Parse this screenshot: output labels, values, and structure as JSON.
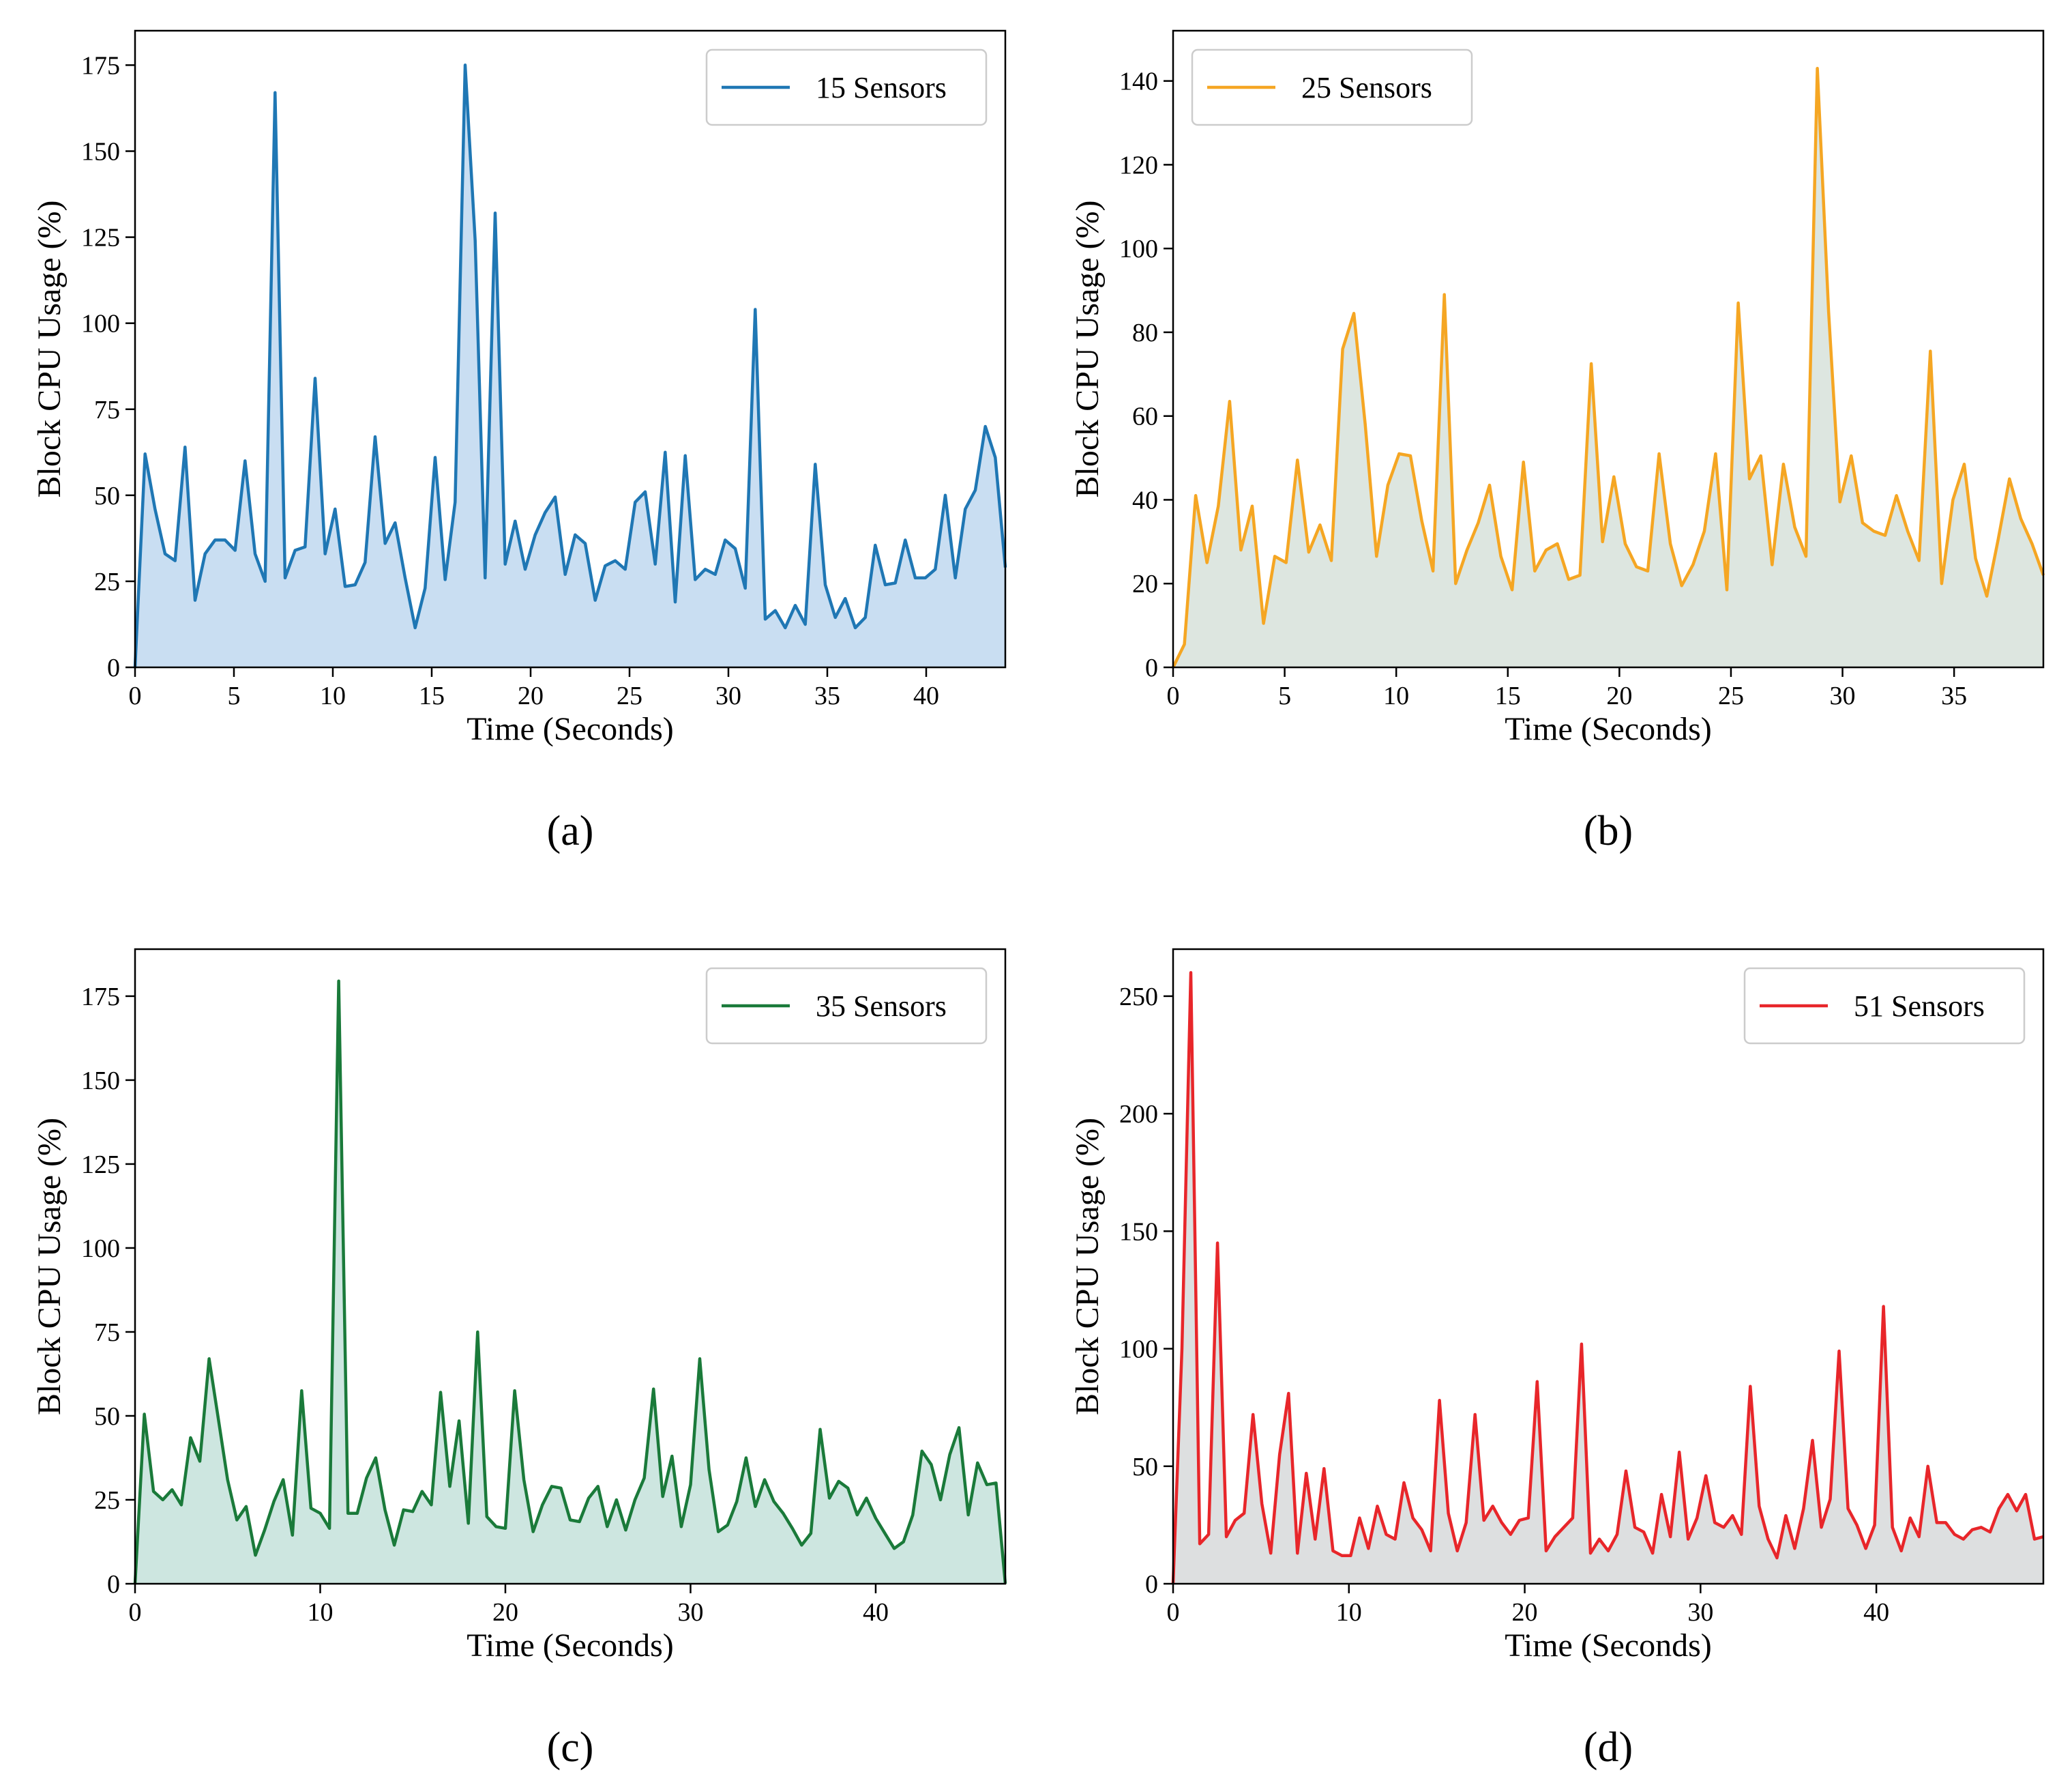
{
  "chart_data": [
    {
      "type": "area",
      "panel_label": "(a)",
      "legend": "15 Sensors",
      "legend_position": "upper-right",
      "color": "#1f77b4",
      "fill": "#c9def2",
      "xlabel": "Time (Seconds)",
      "ylabel": "Block CPU Usage (%)",
      "xlim": [
        0,
        44
      ],
      "ylim": [
        0,
        185
      ],
      "xticks": [
        0,
        5,
        10,
        15,
        20,
        25,
        30,
        35,
        40
      ],
      "yticks": [
        0,
        25,
        50,
        75,
        100,
        125,
        150,
        175
      ],
      "values": [
        0,
        62,
        46,
        33,
        31,
        64,
        19.5,
        33,
        37,
        37,
        34,
        60,
        33,
        25,
        167,
        26,
        34,
        35,
        84,
        33,
        46,
        23.5,
        24,
        30.5,
        67,
        36,
        42,
        26,
        11.5,
        23,
        61,
        25.5,
        48,
        175,
        124,
        26,
        132,
        30,
        42.5,
        28.5,
        38.5,
        45,
        49.5,
        27,
        38.5,
        36,
        19.5,
        29.5,
        31,
        28.5,
        48,
        51,
        30,
        62.5,
        19,
        61.5,
        25.5,
        28.5,
        27,
        37,
        34.5,
        23,
        104,
        14,
        16.5,
        11.5,
        18,
        12.5,
        59,
        24,
        14.5,
        20,
        11.5,
        14.5,
        35.5,
        24,
        24.5,
        37,
        26,
        26,
        28.5,
        50,
        26,
        46,
        51.5,
        70,
        61,
        29
      ]
    },
    {
      "type": "area",
      "panel_label": "(b)",
      "legend": "25 Sensors",
      "legend_position": "upper-left",
      "color": "#f5a623",
      "fill": "#dde6e0",
      "xlabel": "Time (Seconds)",
      "ylabel": "Block CPU Usage (%)",
      "xlim": [
        0,
        39
      ],
      "ylim": [
        0,
        152
      ],
      "xticks": [
        0,
        5,
        10,
        15,
        20,
        25,
        30,
        35
      ],
      "yticks": [
        0,
        20,
        40,
        60,
        80,
        100,
        120,
        140
      ],
      "values": [
        0,
        5.5,
        41,
        25,
        38.5,
        63.5,
        28,
        38.5,
        10.5,
        26.5,
        25,
        49.5,
        27.5,
        34,
        25.5,
        76,
        84.5,
        58,
        26.5,
        43.5,
        51,
        50.5,
        35,
        23,
        89,
        20,
        28,
        34.5,
        43.5,
        26.5,
        18.5,
        49,
        23,
        28,
        29.5,
        21,
        22,
        72.5,
        30,
        45.5,
        29.5,
        24,
        23,
        51,
        29.5,
        19.5,
        24.5,
        32.5,
        51,
        18.5,
        87,
        45,
        50.5,
        24.5,
        48.5,
        33.5,
        26.5,
        143,
        85,
        39.5,
        50.5,
        34.5,
        32.5,
        31.5,
        41,
        32.5,
        25.5,
        75.5,
        20,
        40,
        48.5,
        26,
        17,
        30.5,
        45,
        35.5,
        29.5,
        22
      ]
    },
    {
      "type": "area",
      "panel_label": "(c)",
      "legend": "35 Sensors",
      "legend_position": "upper-right",
      "color": "#1a7a3a",
      "fill": "#cde6e0",
      "xlabel": "Time (Seconds)",
      "ylabel": "Block CPU Usage (%)",
      "xlim": [
        0,
        47
      ],
      "ylim": [
        0,
        189
      ],
      "xticks": [
        0,
        10,
        20,
        30,
        40
      ],
      "yticks": [
        0,
        25,
        50,
        75,
        100,
        125,
        150,
        175
      ],
      "values": [
        0,
        50.5,
        27.5,
        25,
        28,
        23.5,
        43.5,
        36.5,
        67,
        49,
        31,
        19,
        23,
        8.5,
        16,
        24.5,
        31,
        14.5,
        57.5,
        22.5,
        21,
        16.5,
        179.5,
        21,
        21,
        31.5,
        37.5,
        22,
        11.5,
        22,
        21.5,
        27.5,
        23.5,
        57,
        29,
        48.5,
        18,
        75,
        20,
        17,
        16.5,
        57.5,
        31,
        15.5,
        23.5,
        29,
        28.5,
        19,
        18.5,
        25.5,
        29,
        17,
        25,
        16,
        25,
        31.5,
        58,
        26,
        38,
        17,
        29.5,
        67,
        34,
        15.5,
        17.5,
        24.5,
        37.5,
        23,
        31,
        24.5,
        21,
        16.5,
        11.5,
        15,
        46,
        25.5,
        30.5,
        28.5,
        20.5,
        25.5,
        19.5,
        15,
        10.5,
        12.5,
        20.5,
        39.5,
        35.5,
        25,
        38.5,
        46.5,
        20.5,
        36,
        29.5,
        30,
        0
      ]
    },
    {
      "type": "area",
      "panel_label": "(d)",
      "legend": "51 Sensors",
      "legend_position": "upper-right",
      "color": "#e8262a",
      "fill": "#dddfe0",
      "xlabel": "Time (Seconds)",
      "ylabel": "Block CPU Usage (%)",
      "xlim": [
        0,
        49.5
      ],
      "ylim": [
        0,
        270
      ],
      "xticks": [
        0,
        10,
        20,
        30,
        40
      ],
      "yticks": [
        0,
        50,
        100,
        150,
        200,
        250
      ],
      "values": [
        0,
        100,
        260,
        17,
        21,
        145,
        20,
        27,
        30,
        72,
        34,
        13,
        55,
        81,
        13,
        47,
        19,
        49,
        14,
        12,
        12,
        28,
        15,
        33,
        21,
        19,
        43,
        28,
        23,
        14,
        78,
        30,
        14,
        26,
        72,
        27,
        33,
        26,
        21,
        27,
        28,
        86,
        14,
        20,
        24,
        28,
        102,
        13,
        19,
        14,
        21,
        48,
        24,
        22,
        13,
        38,
        20,
        56,
        19,
        28,
        46,
        26,
        24,
        29,
        21,
        84,
        33,
        19,
        11,
        29,
        15,
        32,
        61,
        24,
        36,
        99,
        32,
        25,
        15,
        25,
        118,
        24,
        14,
        28,
        20,
        50,
        26,
        26,
        21,
        19,
        23,
        24,
        22,
        32,
        38,
        31,
        38,
        19,
        20
      ]
    }
  ]
}
